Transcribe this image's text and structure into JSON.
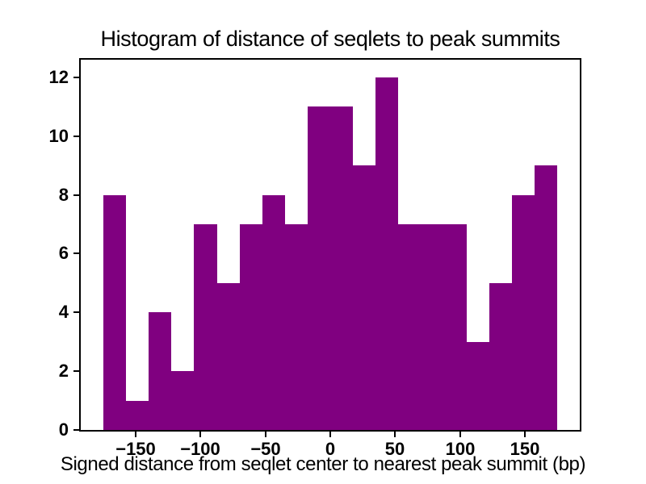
{
  "chart_data": {
    "type": "bar",
    "subtype": "histogram",
    "title": "Histogram of distance of seqlets to peak summits",
    "xlabel": "Signed distance from seqlet center to nearest peak summit (bp)",
    "ylabel": "",
    "bin_start": -175,
    "bin_width": 17.5,
    "bin_edges": [
      -175,
      -157.5,
      -140,
      -122.5,
      -105,
      -87.5,
      -70,
      -52.5,
      -35,
      -17.5,
      0,
      17.5,
      35,
      52.5,
      70,
      87.5,
      105,
      122.5,
      140,
      157.5,
      175
    ],
    "counts": [
      8,
      1,
      4,
      2,
      7,
      5,
      7,
      8,
      7,
      11,
      11,
      9,
      12,
      7,
      7,
      7,
      3,
      5,
      8,
      9
    ],
    "xlim": [
      -192.5,
      192.5
    ],
    "ylim": [
      0,
      12.6
    ],
    "grid": false,
    "legend_position": "none",
    "bar_color": "#800080",
    "axis_color": "#000000",
    "text_color": "#000000",
    "xticks": [
      {
        "value": -150,
        "label": "−150"
      },
      {
        "value": -100,
        "label": "−100"
      },
      {
        "value": -50,
        "label": "−50"
      },
      {
        "value": 0,
        "label": "0"
      },
      {
        "value": 50,
        "label": "50"
      },
      {
        "value": 100,
        "label": "100"
      },
      {
        "value": 150,
        "label": "150"
      }
    ],
    "yticks": [
      {
        "value": 0,
        "label": "0"
      },
      {
        "value": 2,
        "label": "2"
      },
      {
        "value": 4,
        "label": "4"
      },
      {
        "value": 6,
        "label": "6"
      },
      {
        "value": 8,
        "label": "8"
      },
      {
        "value": 10,
        "label": "10"
      },
      {
        "value": 12,
        "label": "12"
      }
    ]
  }
}
